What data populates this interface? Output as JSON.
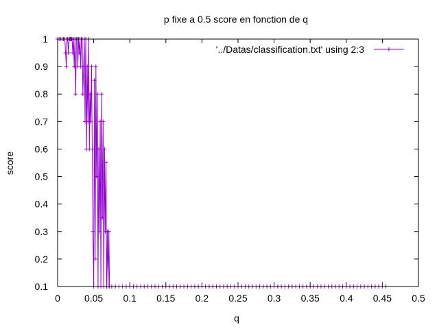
{
  "chart_data": {
    "type": "line",
    "title": "p fixe a 0.5 score en fonction de q",
    "xlabel": "q",
    "ylabel": "score",
    "xlim": [
      0,
      0.5
    ],
    "ylim": [
      0.1,
      1
    ],
    "xticks": [
      0,
      0.05,
      0.1,
      0.15,
      0.2,
      0.25,
      0.3,
      0.35,
      0.4,
      0.45,
      0.5
    ],
    "xtick_labels": [
      "0",
      "0.05",
      "0.1",
      "0.15",
      "0.2",
      "0.25",
      "0.3",
      "0.35",
      "0.4",
      "0.45",
      "0.5"
    ],
    "yticks": [
      0.1,
      0.2,
      0.3,
      0.4,
      0.5,
      0.6,
      0.7,
      0.8,
      0.9,
      1
    ],
    "ytick_labels": [
      "0.1",
      "0.2",
      "0.3",
      "0.4",
      "0.5",
      "0.6",
      "0.7",
      "0.8",
      "0.9",
      "1"
    ],
    "grid": false,
    "legend_position": "top-right",
    "series": [
      {
        "name": "'../Datas/classification.txt' using 2:3",
        "color": "#9400d3",
        "marker": "plus",
        "x": [
          0.0,
          0.002,
          0.004,
          0.006,
          0.008,
          0.01,
          0.011,
          0.012,
          0.013,
          0.014,
          0.015,
          0.016,
          0.017,
          0.018,
          0.019,
          0.02,
          0.021,
          0.022,
          0.023,
          0.024,
          0.025,
          0.026,
          0.027,
          0.028,
          0.029,
          0.03,
          0.031,
          0.032,
          0.033,
          0.034,
          0.035,
          0.036,
          0.037,
          0.038,
          0.039,
          0.04,
          0.041,
          0.042,
          0.043,
          0.044,
          0.045,
          0.046,
          0.047,
          0.048,
          0.049,
          0.05,
          0.051,
          0.052,
          0.053,
          0.054,
          0.055,
          0.056,
          0.057,
          0.058,
          0.059,
          0.06,
          0.061,
          0.062,
          0.063,
          0.064,
          0.065,
          0.066,
          0.067,
          0.068,
          0.069,
          0.07,
          0.071,
          0.072,
          0.075,
          0.08,
          0.085,
          0.09,
          0.095,
          0.1,
          0.105,
          0.11,
          0.115,
          0.12,
          0.125,
          0.13,
          0.135,
          0.14,
          0.145,
          0.15,
          0.155,
          0.16,
          0.165,
          0.17,
          0.175,
          0.18,
          0.185,
          0.19,
          0.195,
          0.2,
          0.205,
          0.21,
          0.215,
          0.22,
          0.225,
          0.23,
          0.235,
          0.24,
          0.245,
          0.25,
          0.255,
          0.26,
          0.265,
          0.27,
          0.275,
          0.28,
          0.285,
          0.29,
          0.295,
          0.3,
          0.305,
          0.31,
          0.315,
          0.32,
          0.325,
          0.33,
          0.335,
          0.34,
          0.345,
          0.35,
          0.355,
          0.36,
          0.365,
          0.37,
          0.375,
          0.38,
          0.385,
          0.39,
          0.395,
          0.4,
          0.405,
          0.41,
          0.415,
          0.42,
          0.425,
          0.43,
          0.435,
          0.44,
          0.445,
          0.45,
          0.455
        ],
        "y": [
          1,
          1,
          1,
          1,
          1,
          1,
          0.95,
          0.9,
          1,
          1,
          0.95,
          1,
          1,
          1,
          1,
          1,
          0.95,
          1,
          0.9,
          1,
          0.8,
          1,
          1,
          0.9,
          1,
          0.95,
          1,
          0.9,
          1,
          1,
          0.8,
          0.9,
          1,
          0.7,
          1,
          0.6,
          0.9,
          0.7,
          1,
          0.6,
          0.8,
          0.7,
          0.9,
          0.6,
          0.3,
          0.1,
          0.85,
          0.2,
          0.9,
          0.5,
          0.8,
          0.1,
          0.6,
          0.3,
          0.7,
          0.1,
          0.8,
          0.35,
          0.7,
          0.1,
          0.6,
          0.3,
          0.55,
          0.1,
          0.3,
          0.1,
          0.3,
          0.1,
          0.1,
          0.1,
          0.1,
          0.1,
          0.1,
          0.1,
          0.1,
          0.1,
          0.1,
          0.1,
          0.1,
          0.1,
          0.1,
          0.1,
          0.1,
          0.1,
          0.1,
          0.1,
          0.1,
          0.1,
          0.1,
          0.1,
          0.1,
          0.1,
          0.1,
          0.1,
          0.1,
          0.1,
          0.1,
          0.1,
          0.1,
          0.1,
          0.1,
          0.1,
          0.1,
          0.1,
          0.1,
          0.1,
          0.1,
          0.1,
          0.1,
          0.1,
          0.1,
          0.1,
          0.1,
          0.1,
          0.1,
          0.1,
          0.1,
          0.1,
          0.1,
          0.1,
          0.1,
          0.1,
          0.1,
          0.1,
          0.1,
          0.1,
          0.1,
          0.1,
          0.1,
          0.1,
          0.1,
          0.1,
          0.1,
          0.1,
          0.1,
          0.1,
          0.1,
          0.1,
          0.1,
          0.1,
          0.1,
          0.1,
          0.1,
          0.1,
          0.1
        ]
      }
    ]
  }
}
